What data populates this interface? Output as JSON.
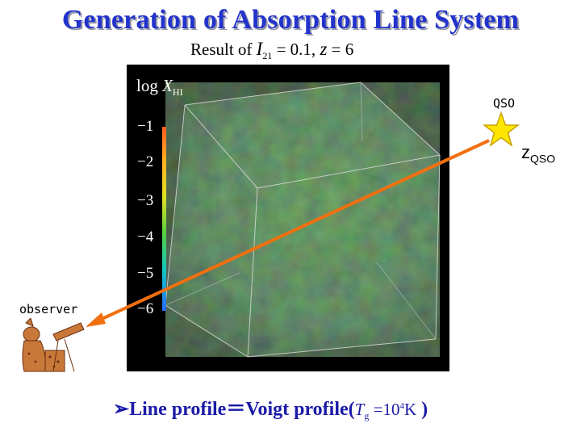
{
  "title": "Generation of Absorption Line System",
  "subtitle": {
    "prefix": "Result of",
    "var_I": "I",
    "sub_I": "21",
    "eq_part": " = 0.1, ",
    "var_z": "z",
    "z_part": " = 6"
  },
  "colorbar": {
    "label_pre": "log ",
    "label_var": "X",
    "label_sub": "HI",
    "ticks": [
      "−1",
      "−2",
      "−3",
      "−4",
      "−5",
      "−6"
    ],
    "colors": [
      "#ff5a1e",
      "#ffb020",
      "#e2e020",
      "#55d040",
      "#10c8c0",
      "#2a6cff"
    ]
  },
  "labels": {
    "qso": "QSO",
    "zqso_z": "z",
    "zqso_sub": "QSO",
    "observer": "observer"
  },
  "bottom": {
    "bullet": "➢",
    "text": "Line profile＝Voigt profile(",
    "T": "T",
    "T_sub": "g",
    "eq": " =10",
    "exp": "4",
    "unit": "K",
    "close": " )"
  },
  "colors": {
    "title": "#2233cc",
    "accent_line": "#f07010",
    "star": "#ffe600",
    "bottom_text": "#1a1aa8"
  }
}
